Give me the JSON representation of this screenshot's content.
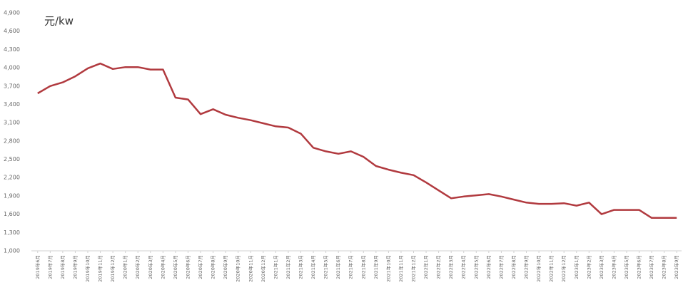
{
  "chart_data": {
    "type": "line",
    "annotation": "元/kw",
    "categories": [
      "2019年6月",
      "2019年7月",
      "2019年8月",
      "2019年9月",
      "2019年10月",
      "2019年11月",
      "2019年12月",
      "2020年1月",
      "2020年2月",
      "2020年3月",
      "2020年4月",
      "2020年5月",
      "2020年6月",
      "2020年7月",
      "2020年8月",
      "2020年9月",
      "2020年10月",
      "2020年11月",
      "2020年12月",
      "2021年1月",
      "2021年2月",
      "2021年3月",
      "2021年4月",
      "2021年5月",
      "2021年6月",
      "2021年7月",
      "2021年8月",
      "2021年9月",
      "2021年10月",
      "2021年11月",
      "2021年12月",
      "2022年1月",
      "2022年2月",
      "2022年3月",
      "2022年4月",
      "2022年5月",
      "2022年6月",
      "2022年7月",
      "2022年8月",
      "2022年9月",
      "2022年10月",
      "2022年11月",
      "2022年12月",
      "2023年1月",
      "2023年2月",
      "2023年3月",
      "2023年4月",
      "2023年5月",
      "2023年6月",
      "2023年7月",
      "2023年8月",
      "2023年9月"
    ],
    "values": [
      3580,
      3700,
      3760,
      3860,
      3990,
      4070,
      3980,
      4010,
      4010,
      3970,
      3970,
      3510,
      3480,
      3240,
      3320,
      3230,
      3180,
      3140,
      3090,
      3040,
      3020,
      2920,
      2690,
      2630,
      2590,
      2630,
      2540,
      2390,
      2330,
      2280,
      2240,
      2120,
      1990,
      1860,
      1890,
      1910,
      1930,
      1890,
      1840,
      1790,
      1770,
      1770,
      1780,
      1740,
      1790,
      1600,
      1670,
      1670,
      1670,
      1540,
      1540,
      1540
    ],
    "color": "#b13a3f",
    "ylim": [
      1000,
      4900
    ],
    "yticks": [
      {
        "value": 1000,
        "label": "1,000"
      },
      {
        "value": 1300,
        "label": "1,300"
      },
      {
        "value": 1600,
        "label": "1,600"
      },
      {
        "value": 1900,
        "label": "1,900"
      },
      {
        "value": 2200,
        "label": "2,200"
      },
      {
        "value": 2500,
        "label": "2,500"
      },
      {
        "value": 2800,
        "label": "2,800"
      },
      {
        "value": 3100,
        "label": "3,100"
      },
      {
        "value": 3400,
        "label": "3,400"
      },
      {
        "value": 3700,
        "label": "3,700"
      },
      {
        "value": 4000,
        "label": "4,000"
      },
      {
        "value": 4300,
        "label": "4,300"
      },
      {
        "value": 4600,
        "label": "4,600"
      },
      {
        "value": 4900,
        "label": "4,900"
      }
    ],
    "grid": false
  }
}
